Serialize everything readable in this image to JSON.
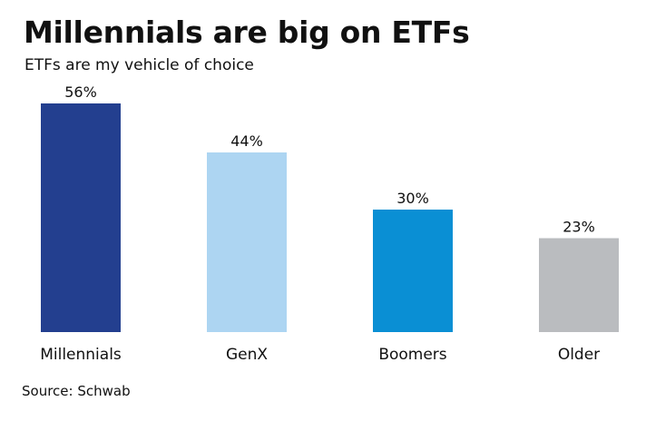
{
  "header": {
    "title": "Millennials are big on ETFs",
    "subtitle": "ETFs are my vehicle of choice"
  },
  "footer": {
    "source": "Source: Schwab"
  },
  "chart_data": {
    "type": "bar",
    "title": "Millennials are big on ETFs",
    "subtitle": "ETFs are my vehicle of choice",
    "categories": [
      "Millennials",
      "GenX",
      "Boomers",
      "Older"
    ],
    "values": [
      56,
      44,
      30,
      23
    ],
    "data_labels": [
      "56%",
      "44%",
      "30%",
      "23%"
    ],
    "colors": [
      "#233f8f",
      "#add5f2",
      "#0a8fd4",
      "#babcbf"
    ],
    "unit": "%",
    "xlabel": "",
    "ylabel": "",
    "ylim": [
      0,
      56
    ],
    "grid": false,
    "legend": "none"
  }
}
